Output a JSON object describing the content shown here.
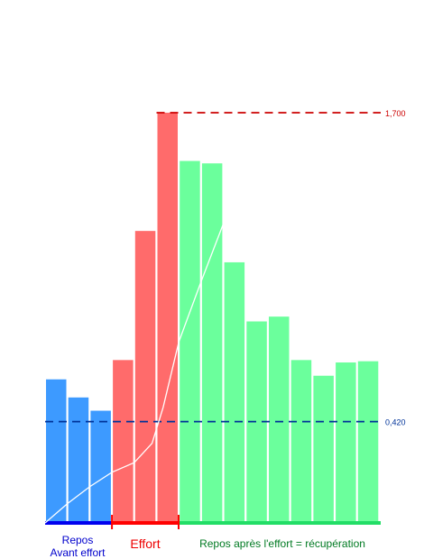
{
  "chart_data": {
    "type": "bar",
    "title": "",
    "xlabel": "",
    "ylabel": "",
    "ylim": [
      0,
      1.75
    ],
    "grid": false,
    "legend": "none",
    "values": [
      0.595,
      0.52,
      0.465,
      0.675,
      1.21,
      1.7,
      1.5,
      1.49,
      1.08,
      0.835,
      0.855,
      0.675,
      0.61,
      0.665,
      0.67
    ],
    "phase_of_bar": [
      "rest_before",
      "rest_before",
      "rest_before",
      "effort",
      "effort",
      "effort",
      "recovery",
      "recovery",
      "recovery",
      "recovery",
      "recovery",
      "recovery",
      "recovery",
      "recovery",
      "recovery"
    ],
    "cumulative_curve": {
      "color": "#ffffff",
      "points": [
        [
          0,
          0.0
        ],
        [
          1,
          0.08
        ],
        [
          2,
          0.15
        ],
        [
          3,
          0.21
        ],
        [
          4,
          0.25
        ],
        [
          4.8,
          0.33
        ],
        [
          5.3,
          0.48
        ],
        [
          6,
          0.75
        ],
        [
          7,
          1.0
        ],
        [
          8,
          1.24
        ]
      ]
    },
    "reference_lines": [
      {
        "value": 1.7,
        "label": "1,700",
        "color": "#cc0000",
        "from_bar": 5
      },
      {
        "value": 0.42,
        "label": "0,420",
        "color": "#003399",
        "from_bar": 0
      }
    ],
    "phases": [
      {
        "key": "rest_before",
        "label_line1": "Repos",
        "label_line2": "Avant effort",
        "bar_color": "#3d9aff",
        "axis_color": "#0000ee",
        "text_color": "#0000cc"
      },
      {
        "key": "effort",
        "label": "Effort",
        "bar_color": "#ff6b6b",
        "axis_color": "#ff0000",
        "text_color": "#ee0000"
      },
      {
        "key": "recovery",
        "label": "Repos après l'effort = récupération",
        "bar_color": "#6bff9c",
        "axis_color": "#22dd66",
        "text_color": "#007a22"
      }
    ]
  }
}
